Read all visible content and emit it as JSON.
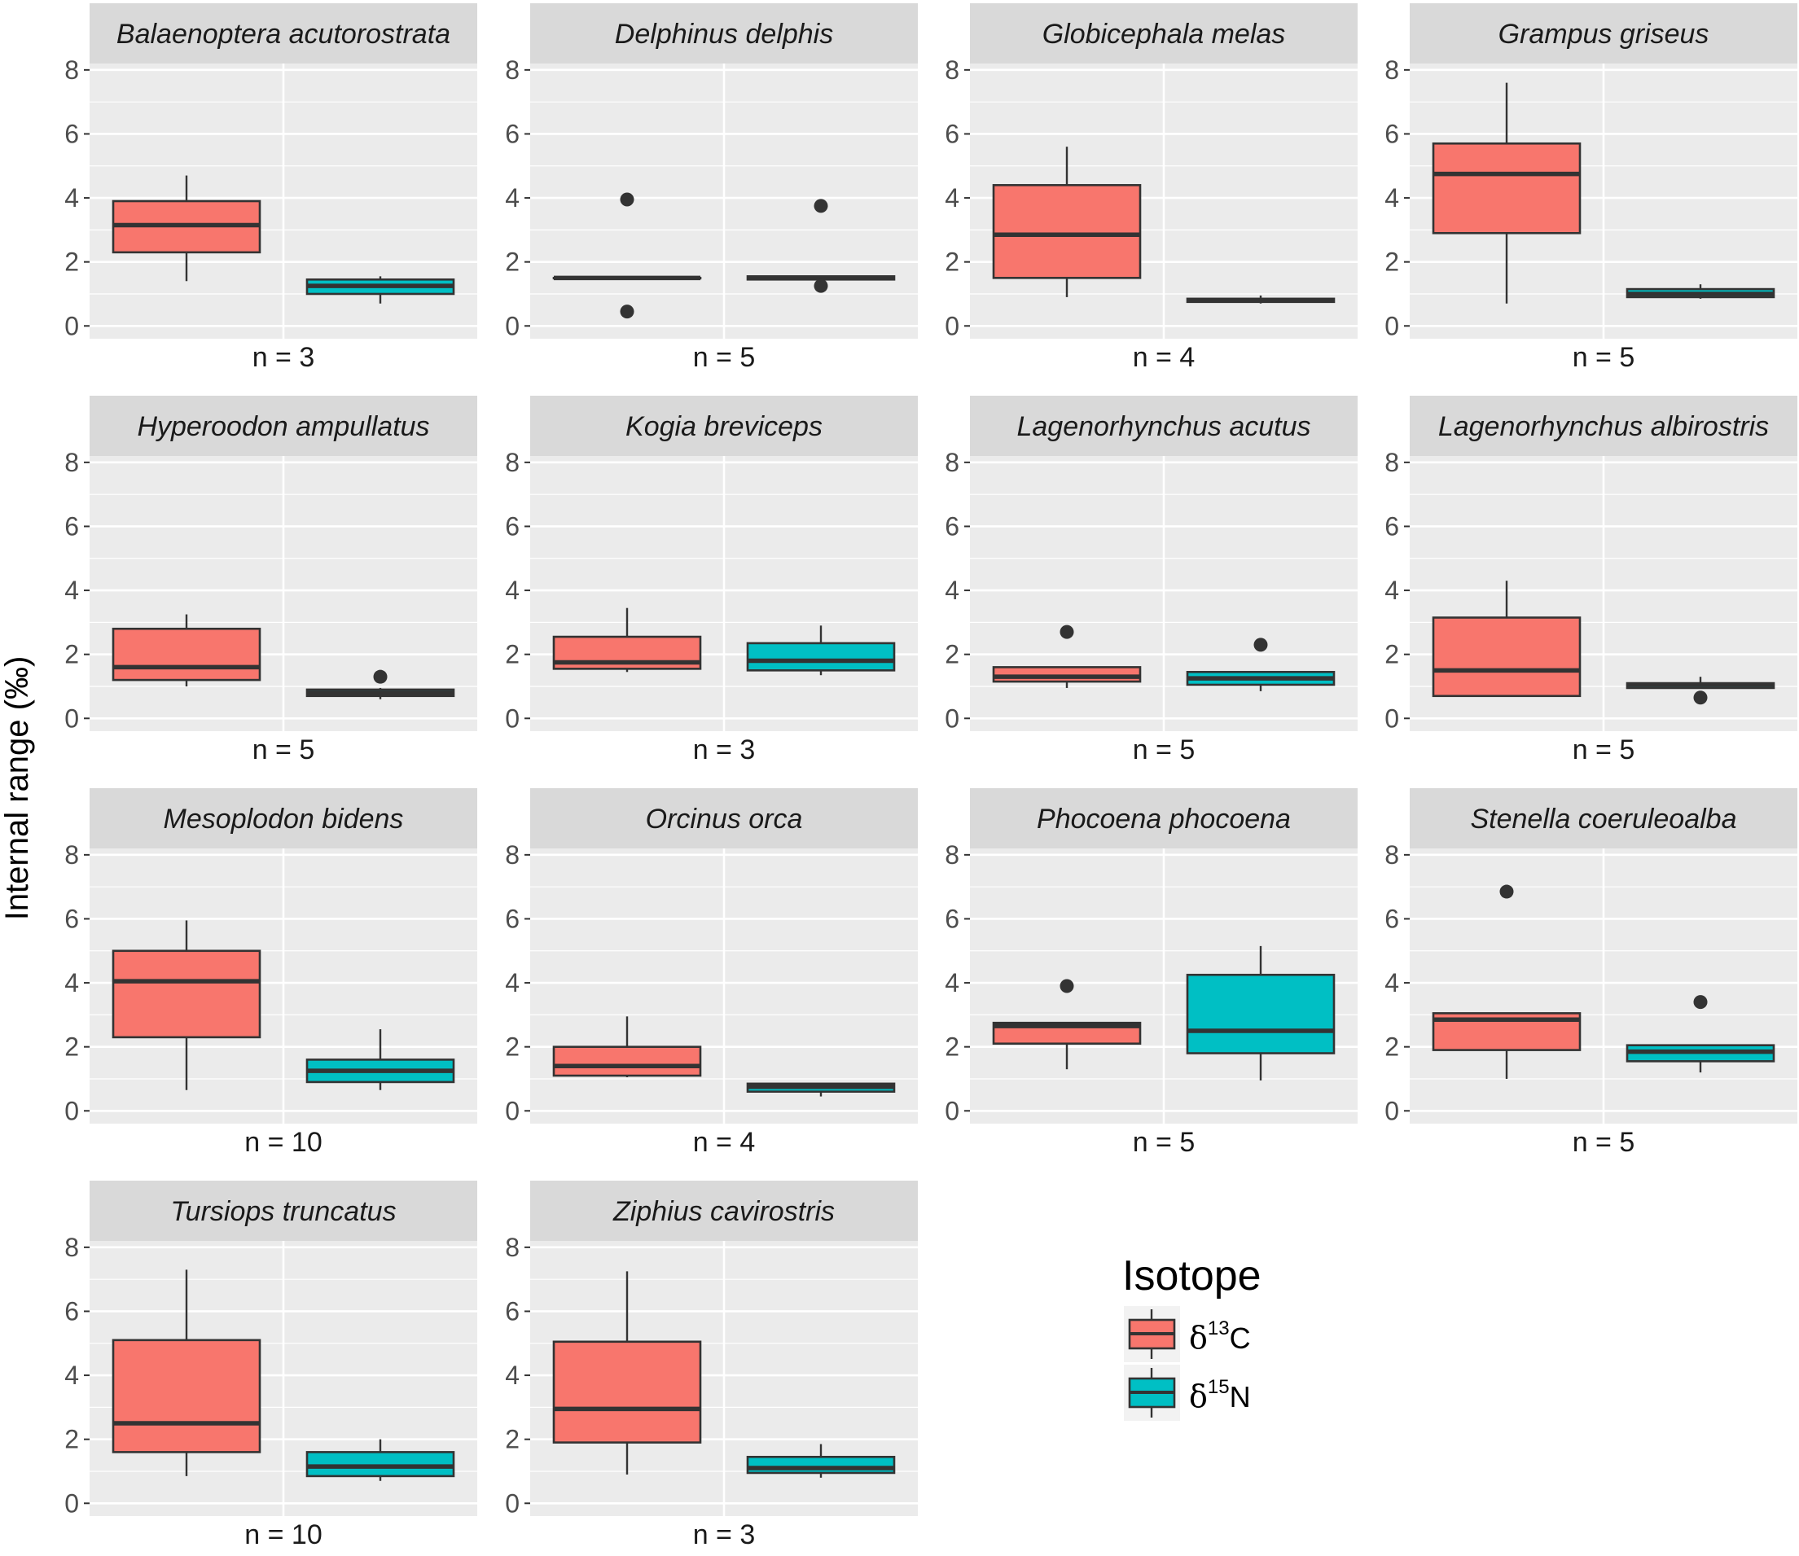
{
  "chart_data": {
    "type": "boxplot",
    "facet_layout": "4 columns x 4 rows",
    "ylabel": "Internal range (‰)",
    "ylim": [
      -0.4,
      8.2
    ],
    "yticks": [
      "0",
      "2",
      "4",
      "6",
      "8"
    ],
    "legend": {
      "title": "Isotope",
      "placement": "bottom-right",
      "entries": [
        {
          "symbol": "δ",
          "sup": "13",
          "element": "C",
          "color": "#F8766D"
        },
        {
          "symbol": "δ",
          "sup": "15",
          "element": "N",
          "color": "#00BFC4"
        }
      ]
    },
    "colors": {
      "C": "#F8766D",
      "N": "#00BFC4",
      "panel": "#EBEBEB",
      "strip": "#D9D9D9",
      "outline": "#333333"
    },
    "panels": [
      {
        "species": "Balaenoptera acutorostrata",
        "n_label": "n = 3",
        "C": {
          "lower_whisker": 1.4,
          "q1": 2.3,
          "median": 3.15,
          "q3": 3.9,
          "upper_whisker": 4.7,
          "outliers": []
        },
        "N": {
          "lower_whisker": 0.7,
          "q1": 1.0,
          "median": 1.25,
          "q3": 1.45,
          "upper_whisker": 1.55,
          "outliers": []
        }
      },
      {
        "species": "Delphinus delphis",
        "n_label": "n = 5",
        "C": {
          "lower_whisker": 1.5,
          "q1": 1.5,
          "median": 1.5,
          "q3": 1.5,
          "upper_whisker": 1.5,
          "outliers": [
            3.95,
            0.45
          ]
        },
        "N": {
          "lower_whisker": 1.45,
          "q1": 1.45,
          "median": 1.5,
          "q3": 1.55,
          "upper_whisker": 1.55,
          "outliers": [
            3.75,
            1.25
          ]
        }
      },
      {
        "species": "Globicephala melas",
        "n_label": "n = 4",
        "C": {
          "lower_whisker": 0.9,
          "q1": 1.5,
          "median": 2.85,
          "q3": 4.4,
          "upper_whisker": 5.6,
          "outliers": []
        },
        "N": {
          "lower_whisker": 0.7,
          "q1": 0.75,
          "median": 0.8,
          "q3": 0.85,
          "upper_whisker": 0.95,
          "outliers": []
        }
      },
      {
        "species": "Grampus griseus",
        "n_label": "n = 5",
        "C": {
          "lower_whisker": 0.7,
          "q1": 2.9,
          "median": 4.75,
          "q3": 5.7,
          "upper_whisker": 7.6,
          "outliers": []
        },
        "N": {
          "lower_whisker": 0.85,
          "q1": 0.9,
          "median": 1.0,
          "q3": 1.15,
          "upper_whisker": 1.3,
          "outliers": []
        }
      },
      {
        "species": "Hyperoodon ampullatus",
        "n_label": "n = 5",
        "C": {
          "lower_whisker": 1.0,
          "q1": 1.2,
          "median": 1.6,
          "q3": 2.8,
          "upper_whisker": 3.25,
          "outliers": []
        },
        "N": {
          "lower_whisker": 0.6,
          "q1": 0.7,
          "median": 0.8,
          "q3": 0.9,
          "upper_whisker": 0.95,
          "outliers": [
            1.3
          ]
        }
      },
      {
        "species": "Kogia breviceps",
        "n_label": "n = 3",
        "C": {
          "lower_whisker": 1.45,
          "q1": 1.55,
          "median": 1.75,
          "q3": 2.55,
          "upper_whisker": 3.45,
          "outliers": []
        },
        "N": {
          "lower_whisker": 1.35,
          "q1": 1.5,
          "median": 1.8,
          "q3": 2.35,
          "upper_whisker": 2.9,
          "outliers": []
        }
      },
      {
        "species": "Lagenorhynchus acutus",
        "n_label": "n = 5",
        "C": {
          "lower_whisker": 0.95,
          "q1": 1.15,
          "median": 1.3,
          "q3": 1.6,
          "upper_whisker": 1.6,
          "outliers": [
            2.7
          ]
        },
        "N": {
          "lower_whisker": 0.85,
          "q1": 1.05,
          "median": 1.25,
          "q3": 1.45,
          "upper_whisker": 1.45,
          "outliers": [
            2.3
          ]
        }
      },
      {
        "species": "Lagenorhynchus albirostris",
        "n_label": "n = 5",
        "C": {
          "lower_whisker": 0.7,
          "q1": 0.7,
          "median": 1.5,
          "q3": 3.15,
          "upper_whisker": 4.3,
          "outliers": []
        },
        "N": {
          "lower_whisker": 0.95,
          "q1": 0.95,
          "median": 1.05,
          "q3": 1.1,
          "upper_whisker": 1.3,
          "outliers": [
            0.65
          ]
        }
      },
      {
        "species": "Mesoplodon bidens",
        "n_label": "n = 10",
        "C": {
          "lower_whisker": 0.65,
          "q1": 2.3,
          "median": 4.05,
          "q3": 5.0,
          "upper_whisker": 5.95,
          "outliers": []
        },
        "N": {
          "lower_whisker": 0.65,
          "q1": 0.9,
          "median": 1.25,
          "q3": 1.6,
          "upper_whisker": 2.55,
          "outliers": []
        }
      },
      {
        "species": "Orcinus orca",
        "n_label": "n = 4",
        "C": {
          "lower_whisker": 1.05,
          "q1": 1.1,
          "median": 1.4,
          "q3": 2.0,
          "upper_whisker": 2.95,
          "outliers": []
        },
        "N": {
          "lower_whisker": 0.45,
          "q1": 0.6,
          "median": 0.75,
          "q3": 0.85,
          "upper_whisker": 0.85,
          "outliers": []
        }
      },
      {
        "species": "Phocoena phocoena",
        "n_label": "n = 5",
        "C": {
          "lower_whisker": 1.3,
          "q1": 2.1,
          "median": 2.65,
          "q3": 2.75,
          "upper_whisker": 2.75,
          "outliers": [
            3.9
          ]
        },
        "N": {
          "lower_whisker": 0.95,
          "q1": 1.8,
          "median": 2.5,
          "q3": 4.25,
          "upper_whisker": 5.15,
          "outliers": []
        }
      },
      {
        "species": "Stenella coeruleoalba",
        "n_label": "n = 5",
        "C": {
          "lower_whisker": 1.0,
          "q1": 1.9,
          "median": 2.85,
          "q3": 3.05,
          "upper_whisker": 3.05,
          "outliers": [
            6.85
          ]
        },
        "N": {
          "lower_whisker": 1.2,
          "q1": 1.55,
          "median": 1.85,
          "q3": 2.05,
          "upper_whisker": 2.05,
          "outliers": [
            3.4
          ]
        }
      },
      {
        "species": "Tursiops truncatus",
        "n_label": "n = 10",
        "C": {
          "lower_whisker": 0.85,
          "q1": 1.6,
          "median": 2.5,
          "q3": 5.1,
          "upper_whisker": 7.3,
          "outliers": []
        },
        "N": {
          "lower_whisker": 0.7,
          "q1": 0.85,
          "median": 1.15,
          "q3": 1.6,
          "upper_whisker": 2.0,
          "outliers": []
        }
      },
      {
        "species": "Ziphius cavirostris",
        "n_label": "n = 3",
        "C": {
          "lower_whisker": 0.9,
          "q1": 1.9,
          "median": 2.95,
          "q3": 5.05,
          "upper_whisker": 7.25,
          "outliers": []
        },
        "N": {
          "lower_whisker": 0.8,
          "q1": 0.95,
          "median": 1.1,
          "q3": 1.45,
          "upper_whisker": 1.85,
          "outliers": []
        }
      }
    ]
  }
}
